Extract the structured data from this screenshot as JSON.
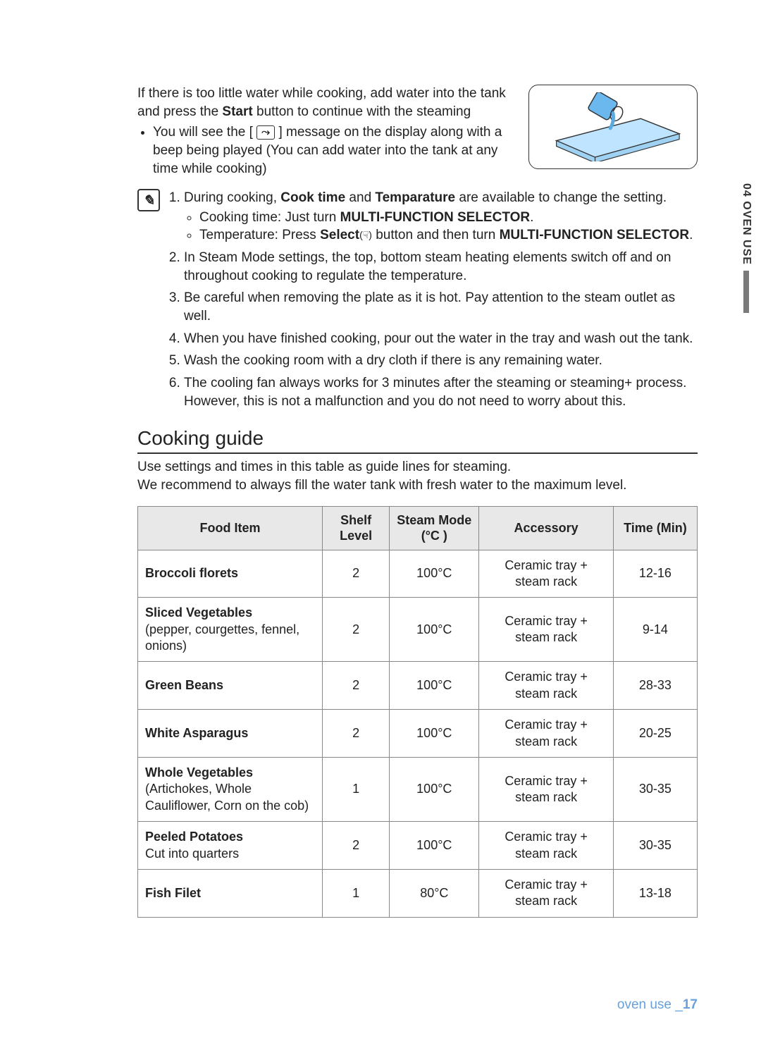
{
  "side_tab": {
    "label": "04 OVEN USE"
  },
  "intro": {
    "para": "If there is too little water while cooking, add water into the tank and press the ",
    "start_bold": "Start",
    "para_tail": " button to continue with the steaming",
    "bullet_pre": "You will see the [ ",
    "bullet_icon": "⤳",
    "bullet_post": " ] message on the display along with a beep being played (You can add water into the tank at any time while cooking)"
  },
  "note_icon": "✎",
  "notes": {
    "n1_a": "During cooking, ",
    "n1_b": "Cook time",
    "n1_c": " and ",
    "n1_d": "Temparature",
    "n1_e": " are available to change the setting.",
    "n1_s1_a": "Cooking time: Just turn ",
    "n1_s1_b": "MULTI-FUNCTION SELECTOR",
    "n1_s1_c": ".",
    "n1_s2_a": "Temperature: Press ",
    "n1_s2_b": "Select",
    "n1_s2_icon": "(☟)",
    "n1_s2_c": " button and then turn ",
    "n1_s2_d": "MULTI-FUNCTION SELECTOR",
    "n1_s2_e": ".",
    "n2": "In Steam Mode settings, the top, bottom steam heating elements switch off and on throughout cooking to regulate the temperature.",
    "n3": "Be careful when removing the plate as it is hot. Pay attention to the steam outlet as well.",
    "n4": "When you have finished cooking, pour out the water in the tray and wash out the tank.",
    "n5": "Wash the cooking room with a dry cloth if there is any remaining water.",
    "n6": "The cooling fan always works for 3 minutes after the steaming or steaming+ process. However, this is not a malfunction and you do not need to worry about this."
  },
  "section_title": "Cooking guide",
  "guide_intro1": "Use settings and times in this table as guide lines for steaming.",
  "guide_intro2": "We recommend to always fill the water tank with fresh water to the maximum level.",
  "table": {
    "headers": {
      "food": "Food Item",
      "shelf": "Shelf Level",
      "mode": "Steam Mode (°C )",
      "acc": "Accessory",
      "time": "Time (Min)"
    },
    "acc_text": "Ceramic tray + steam rack",
    "rows": [
      {
        "name": "Broccoli florets",
        "sub": "",
        "shelf": "2",
        "mode": "100°C",
        "time": "12-16"
      },
      {
        "name": "Sliced Vegetables",
        "sub": "(pepper, courgettes, fennel, onions)",
        "shelf": "2",
        "mode": "100°C",
        "time": "9-14"
      },
      {
        "name": "Green Beans",
        "sub": "",
        "shelf": "2",
        "mode": "100°C",
        "time": "28-33"
      },
      {
        "name": "White Asparagus",
        "sub": "",
        "shelf": "2",
        "mode": "100°C",
        "time": "20-25"
      },
      {
        "name": "Whole Vegetables",
        "sub": "(Artichokes, Whole Cauliflower, Corn on the cob)",
        "shelf": "1",
        "mode": "100°C",
        "time": "30-35"
      },
      {
        "name": "Peeled Potatoes",
        "sub": "Cut into quarters",
        "shelf": "2",
        "mode": "100°C",
        "time": "30-35"
      },
      {
        "name": "Fish Filet",
        "sub": "",
        "shelf": "1",
        "mode": "80°C",
        "time": "13-18"
      }
    ]
  },
  "footer": {
    "text": "oven use _",
    "page": "17"
  }
}
